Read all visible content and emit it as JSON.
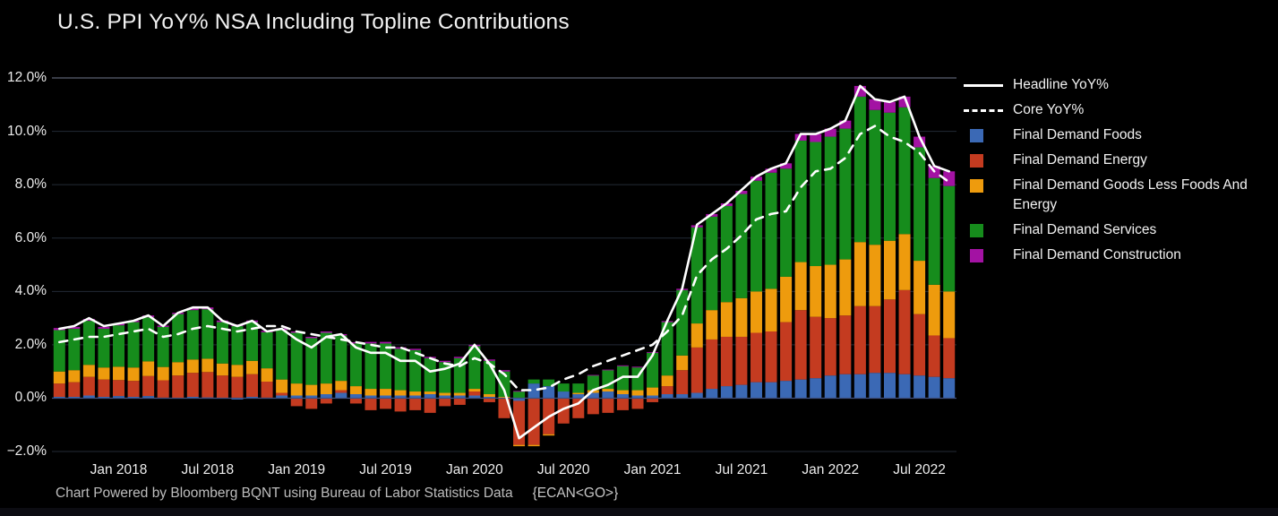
{
  "title": "U.S. PPI YoY% NSA Including Topline Contributions",
  "footer": {
    "text": "Chart Powered by Bloomberg BQNT using Bureau of Labor Statistics Data",
    "command": "{ECAN<GO>}"
  },
  "colors": {
    "background": "#000000",
    "foods": "#3b69b5",
    "energy": "#c43b20",
    "goods": "#ee9b0d",
    "services": "#168c1c",
    "construction": "#a312a3",
    "headline_line": "#ffffff",
    "core_line": "#ffffff",
    "grid": "#232a36",
    "grid_top": "#59616f",
    "zero_line": "#3f4f7f",
    "axis_text": "#ededed",
    "title_text": "#f2f2f2",
    "footer_text": "#bdbdbd"
  },
  "legend": {
    "items": [
      {
        "label": "Headline YoY%",
        "marker": "line-solid",
        "color_key": "headline_line"
      },
      {
        "label": "Core YoY%",
        "marker": "line-dashed",
        "color_key": "core_line"
      },
      {
        "label": "Final Demand Foods",
        "marker": "swatch",
        "color_key": "foods"
      },
      {
        "label": "Final Demand Energy",
        "marker": "swatch",
        "color_key": "energy"
      },
      {
        "label": "Final Demand Goods Less Foods And Energy",
        "marker": "swatch",
        "color_key": "goods"
      },
      {
        "label": "Final Demand Services",
        "marker": "swatch",
        "color_key": "services"
      },
      {
        "label": "Final Demand Construction",
        "marker": "swatch",
        "color_key": "construction"
      }
    ]
  },
  "chart_data": {
    "type": "stacked-bar-with-lines",
    "title": "U.S. PPI YoY% NSA Including Topline Contributions",
    "ylim": [
      -2.4,
      12.3
    ],
    "grid": "horizontal",
    "legend_position": "right",
    "y_ticks": [
      {
        "value": 12,
        "label": "12.0%"
      },
      {
        "value": 10,
        "label": "10.0%"
      },
      {
        "value": 8,
        "label": "8.0%"
      },
      {
        "value": 6,
        "label": "6.0%"
      },
      {
        "value": 4,
        "label": "4.0%"
      },
      {
        "value": 2,
        "label": "2.0%"
      },
      {
        "value": 0,
        "label": "0.0%"
      },
      {
        "value": -2,
        "label": "−2.0%"
      }
    ],
    "x_ticks": [
      {
        "index": 4,
        "label": "Jan 2018"
      },
      {
        "index": 10,
        "label": "Jul 2018"
      },
      {
        "index": 16,
        "label": "Jan 2019"
      },
      {
        "index": 22,
        "label": "Jul 2019"
      },
      {
        "index": 28,
        "label": "Jan 2020"
      },
      {
        "index": 34,
        "label": "Jul 2020"
      },
      {
        "index": 40,
        "label": "Jan 2021"
      },
      {
        "index": 46,
        "label": "Jul 2021"
      },
      {
        "index": 52,
        "label": "Jan 2022"
      },
      {
        "index": 58,
        "label": "Jul 2022"
      }
    ],
    "months": [
      "Sep 2017",
      "Oct 2017",
      "Nov 2017",
      "Dec 2017",
      "Jan 2018",
      "Feb 2018",
      "Mar 2018",
      "Apr 2018",
      "May 2018",
      "Jun 2018",
      "Jul 2018",
      "Aug 2018",
      "Sep 2018",
      "Oct 2018",
      "Nov 2018",
      "Dec 2018",
      "Jan 2019",
      "Feb 2019",
      "Mar 2019",
      "Apr 2019",
      "May 2019",
      "Jun 2019",
      "Jul 2019",
      "Aug 2019",
      "Sep 2019",
      "Oct 2019",
      "Nov 2019",
      "Dec 2019",
      "Jan 2020",
      "Feb 2020",
      "Mar 2020",
      "Apr 2020",
      "May 2020",
      "Jun 2020",
      "Jul 2020",
      "Aug 2020",
      "Sep 2020",
      "Oct 2020",
      "Nov 2020",
      "Dec 2020",
      "Jan 2021",
      "Feb 2021",
      "Mar 2021",
      "Apr 2021",
      "May 2021",
      "Jun 2021",
      "Jul 2021",
      "Aug 2021",
      "Sep 2021",
      "Oct 2021",
      "Nov 2021",
      "Dec 2021",
      "Jan 2022",
      "Feb 2022",
      "Mar 2022",
      "Apr 2022",
      "May 2022",
      "Jun 2022",
      "Jul 2022",
      "Aug 2022",
      "Sep 2022"
    ],
    "series": [
      {
        "name": "Final Demand Foods",
        "color_key": "foods",
        "values": [
          0.05,
          0.05,
          0.1,
          0.05,
          0.08,
          0.05,
          0.08,
          0.02,
          0.0,
          0.05,
          0.03,
          0.0,
          -0.05,
          0.05,
          0.02,
          0.1,
          0.1,
          0.1,
          0.15,
          0.2,
          0.15,
          0.1,
          0.1,
          0.1,
          0.1,
          0.15,
          0.1,
          0.1,
          0.1,
          0.05,
          0.0,
          -0.1,
          0.55,
          0.45,
          0.25,
          0.15,
          0.2,
          0.25,
          0.15,
          0.1,
          0.1,
          0.15,
          0.15,
          0.2,
          0.35,
          0.45,
          0.5,
          0.6,
          0.6,
          0.65,
          0.7,
          0.75,
          0.85,
          0.9,
          0.9,
          0.95,
          0.95,
          0.9,
          0.85,
          0.8,
          0.75
        ]
      },
      {
        "name": "Final Demand Energy",
        "color_key": "energy",
        "values": [
          0.5,
          0.55,
          0.7,
          0.65,
          0.6,
          0.6,
          0.75,
          0.65,
          0.85,
          0.9,
          0.95,
          0.85,
          0.8,
          0.85,
          0.6,
          0.1,
          -0.3,
          -0.4,
          -0.2,
          0.1,
          -0.2,
          -0.45,
          -0.4,
          -0.5,
          -0.45,
          -0.55,
          -0.3,
          -0.25,
          0.15,
          -0.15,
          -0.75,
          -1.65,
          -1.75,
          -1.35,
          -0.95,
          -0.75,
          -0.6,
          -0.55,
          -0.45,
          -0.4,
          -0.15,
          0.3,
          0.9,
          1.7,
          1.85,
          1.85,
          1.8,
          1.85,
          1.9,
          2.2,
          2.6,
          2.3,
          2.15,
          2.2,
          2.55,
          2.5,
          2.75,
          3.15,
          2.3,
          1.55,
          1.5
        ]
      },
      {
        "name": "Final Demand Goods Less Foods And Energy",
        "color_key": "goods",
        "values": [
          0.45,
          0.45,
          0.45,
          0.45,
          0.5,
          0.5,
          0.55,
          0.5,
          0.5,
          0.5,
          0.5,
          0.45,
          0.45,
          0.5,
          0.5,
          0.5,
          0.45,
          0.4,
          0.4,
          0.35,
          0.3,
          0.25,
          0.25,
          0.2,
          0.15,
          0.1,
          0.1,
          0.1,
          0.1,
          0.1,
          0.05,
          -0.05,
          -0.05,
          -0.05,
          0.0,
          0.05,
          0.1,
          0.1,
          0.15,
          0.2,
          0.3,
          0.4,
          0.55,
          0.9,
          1.1,
          1.3,
          1.45,
          1.55,
          1.6,
          1.7,
          1.8,
          1.9,
          2.0,
          2.1,
          2.4,
          2.3,
          2.2,
          2.1,
          2.0,
          1.9,
          1.75
        ]
      },
      {
        "name": "Final Demand Services",
        "color_key": "services",
        "values": [
          1.55,
          1.55,
          1.65,
          1.45,
          1.55,
          1.7,
          1.65,
          1.5,
          1.8,
          1.85,
          1.85,
          1.55,
          1.45,
          1.45,
          1.35,
          1.85,
          1.9,
          1.75,
          1.9,
          1.7,
          1.6,
          1.7,
          1.7,
          1.55,
          1.55,
          1.25,
          1.15,
          1.3,
          1.6,
          1.25,
          0.95,
          0.25,
          0.15,
          0.25,
          0.3,
          0.35,
          0.55,
          0.7,
          0.9,
          0.85,
          1.3,
          2.0,
          2.45,
          3.6,
          3.5,
          3.6,
          3.9,
          4.15,
          4.35,
          4.05,
          4.55,
          4.65,
          4.8,
          4.9,
          5.45,
          5.05,
          4.8,
          4.75,
          4.25,
          4.0,
          3.95
        ]
      },
      {
        "name": "Final Demand Construction",
        "color_key": "construction",
        "values": [
          0.08,
          0.07,
          0.07,
          0.07,
          0.07,
          0.05,
          0.07,
          0.05,
          0.05,
          0.08,
          0.07,
          0.06,
          0.06,
          0.06,
          0.05,
          0.06,
          0.05,
          0.05,
          0.05,
          0.05,
          0.05,
          0.06,
          0.06,
          0.06,
          0.05,
          0.05,
          0.05,
          0.05,
          0.05,
          0.05,
          0.05,
          0.02,
          0.0,
          0.0,
          0.0,
          0.0,
          0.02,
          0.02,
          0.03,
          0.03,
          0.03,
          0.04,
          0.05,
          0.08,
          0.1,
          0.1,
          0.12,
          0.15,
          0.15,
          0.2,
          0.25,
          0.3,
          0.3,
          0.3,
          0.4,
          0.4,
          0.4,
          0.4,
          0.4,
          0.45,
          0.55
        ]
      }
    ],
    "lines": [
      {
        "name": "Headline YoY%",
        "style": "solid",
        "color_key": "headline_line",
        "values": [
          2.6,
          2.7,
          3.0,
          2.7,
          2.8,
          2.9,
          3.1,
          2.7,
          3.2,
          3.4,
          3.4,
          2.9,
          2.7,
          2.9,
          2.5,
          2.6,
          2.2,
          1.9,
          2.3,
          2.4,
          1.9,
          1.7,
          1.7,
          1.4,
          1.4,
          1.0,
          1.1,
          1.3,
          2.0,
          1.3,
          0.3,
          -1.5,
          -1.1,
          -0.7,
          -0.4,
          -0.2,
          0.3,
          0.5,
          0.8,
          0.8,
          1.6,
          2.9,
          4.1,
          6.5,
          6.9,
          7.3,
          7.8,
          8.3,
          8.6,
          8.8,
          9.9,
          9.9,
          10.1,
          10.4,
          11.7,
          11.2,
          11.1,
          11.3,
          9.8,
          8.7,
          8.5
        ]
      },
      {
        "name": "Core YoY%",
        "style": "dashed",
        "color_key": "core_line",
        "values": [
          2.1,
          2.2,
          2.3,
          2.3,
          2.4,
          2.5,
          2.6,
          2.3,
          2.4,
          2.6,
          2.7,
          2.6,
          2.5,
          2.6,
          2.7,
          2.7,
          2.5,
          2.4,
          2.3,
          2.2,
          2.1,
          2.0,
          1.9,
          1.9,
          1.7,
          1.5,
          1.3,
          1.2,
          1.5,
          1.3,
          0.9,
          0.3,
          0.3,
          0.4,
          0.7,
          0.9,
          1.2,
          1.4,
          1.6,
          1.8,
          2.0,
          2.5,
          3.1,
          4.6,
          5.2,
          5.6,
          6.1,
          6.7,
          6.9,
          7.0,
          7.9,
          8.5,
          8.6,
          9.0,
          9.9,
          10.2,
          9.8,
          9.6,
          9.2,
          8.5,
          8.1
        ]
      }
    ]
  }
}
